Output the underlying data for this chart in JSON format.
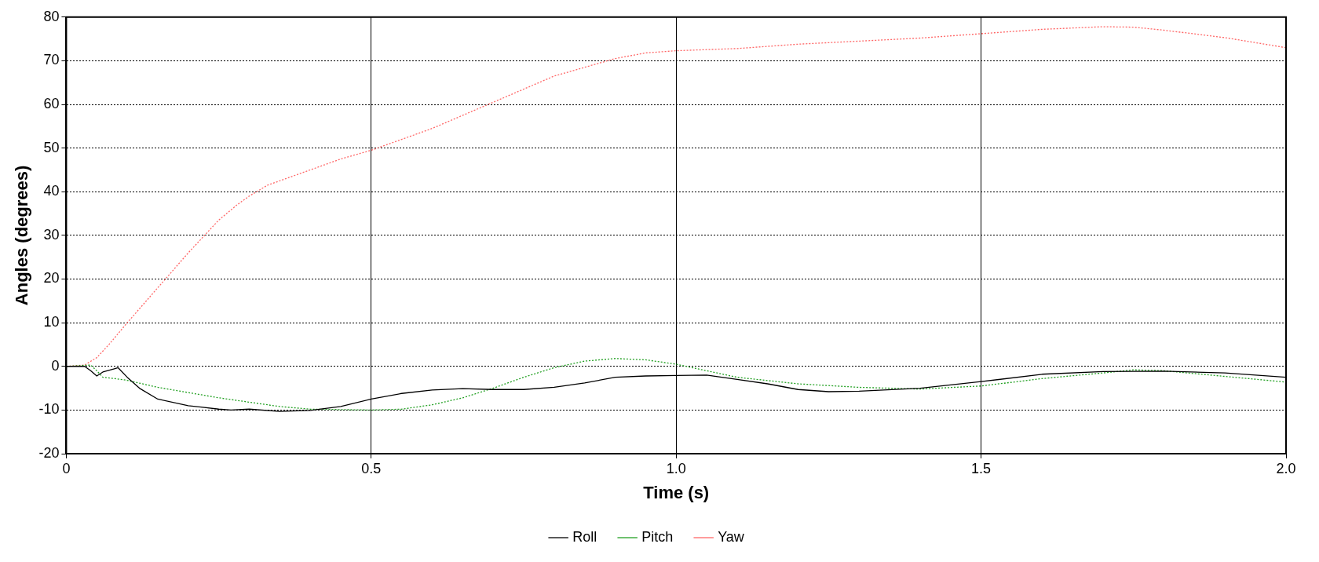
{
  "chart_data": {
    "type": "line",
    "xlabel": "Time (s)",
    "ylabel": "Angles (degrees)",
    "xlim": [
      0,
      2
    ],
    "xticks": [
      0,
      0.5,
      {
        "value": 1,
        "label": "1.0"
      },
      1.5,
      {
        "value": 2,
        "label": "2.0"
      }
    ],
    "ylim": [
      -20,
      80
    ],
    "yticks": [
      -20,
      -10,
      0,
      10,
      20,
      30,
      40,
      50,
      60,
      70,
      80
    ],
    "grid": true,
    "legend": "bottom",
    "marker": "none",
    "series": [
      {
        "name": "Roll",
        "color": "#000000",
        "line_style": "solid",
        "x": [
          0,
          0.03,
          0.04,
          0.05,
          0.06,
          0.08,
          0.085,
          0.1,
          0.12,
          0.15,
          0.2,
          0.25,
          0.27,
          0.3,
          0.35,
          0.4,
          0.45,
          0.5,
          0.55,
          0.6,
          0.65,
          0.7,
          0.75,
          0.8,
          0.85,
          0.9,
          0.95,
          1.0,
          1.05,
          1.1,
          1.15,
          1.2,
          1.25,
          1.3,
          1.4,
          1.5,
          1.6,
          1.7,
          1.8,
          1.9,
          2.0
        ],
        "values": [
          0,
          0,
          -1,
          -2.2,
          -1.3,
          -0.5,
          -0.3,
          -2.5,
          -5,
          -7.5,
          -9,
          -9.8,
          -10,
          -9.8,
          -10.3,
          -10.1,
          -9.2,
          -7.5,
          -6.2,
          -5.4,
          -5.1,
          -5.3,
          -5.3,
          -4.8,
          -3.8,
          -2.5,
          -2.2,
          -2.1,
          -2,
          -3,
          -4,
          -5.3,
          -5.8,
          -5.7,
          -5,
          -3.5,
          -1.8,
          -1.2,
          -1.1,
          -1.5,
          -2.5
        ]
      },
      {
        "name": "Pitch",
        "color": "#22a022",
        "line_style": "dotted",
        "x": [
          0,
          0.04,
          0.05,
          0.06,
          0.08,
          0.1,
          0.15,
          0.2,
          0.25,
          0.3,
          0.35,
          0.4,
          0.5,
          0.55,
          0.6,
          0.65,
          0.7,
          0.75,
          0.8,
          0.85,
          0.9,
          0.95,
          1.0,
          1.05,
          1.1,
          1.2,
          1.3,
          1.4,
          1.5,
          1.6,
          1.7,
          1.75,
          1.8,
          1.9,
          2.0
        ],
        "values": [
          0,
          0.3,
          -1,
          -2.5,
          -2.8,
          -3.2,
          -4.8,
          -6,
          -7.2,
          -8.2,
          -9.2,
          -9.8,
          -10,
          -9.8,
          -8.8,
          -7.2,
          -5,
          -2.5,
          -0.3,
          1.2,
          1.8,
          1.5,
          0.5,
          -1,
          -2.5,
          -4,
          -4.8,
          -5.2,
          -4.5,
          -2.8,
          -1.5,
          -0.8,
          -1,
          -2.3,
          -3.6
        ]
      },
      {
        "name": "Yaw",
        "color": "#ff6666",
        "line_style": "dotted",
        "x": [
          0,
          0.03,
          0.05,
          0.07,
          0.1,
          0.15,
          0.2,
          0.25,
          0.28,
          0.3,
          0.33,
          0.4,
          0.45,
          0.5,
          0.55,
          0.6,
          0.65,
          0.7,
          0.75,
          0.8,
          0.85,
          0.9,
          0.95,
          1.0,
          1.1,
          1.2,
          1.3,
          1.4,
          1.5,
          1.6,
          1.7,
          1.75,
          1.8,
          1.9,
          2.0
        ],
        "values": [
          0,
          0.3,
          2,
          5,
          10,
          18,
          26,
          33.5,
          37,
          39,
          41.5,
          45,
          47.5,
          49.5,
          52,
          54.5,
          57.5,
          60.5,
          63.5,
          66.5,
          68.5,
          70.5,
          71.8,
          72.3,
          72.8,
          73.8,
          74.5,
          75.2,
          76.2,
          77.2,
          77.8,
          77.7,
          77,
          75.3,
          73
        ]
      }
    ]
  }
}
